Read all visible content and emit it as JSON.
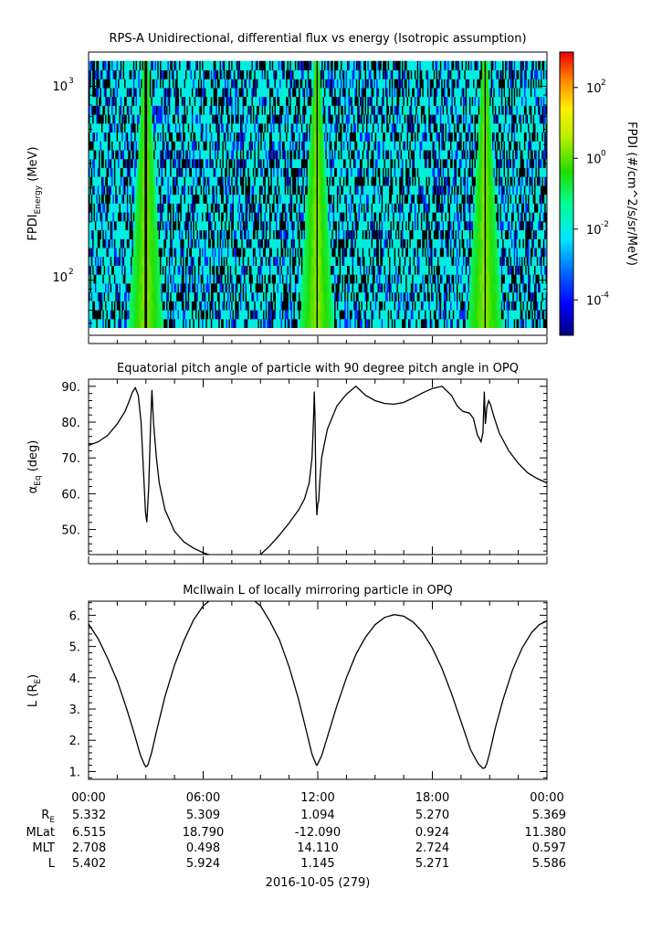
{
  "chart_data": [
    {
      "type": "heatmap",
      "title": "RPS-A Unidirectional, differential flux vs energy (Isotropic assumption)",
      "ylabel_main": "FPDI",
      "ylabel_sub": "Energy",
      "ylabel_unit": "(MeV)",
      "yscale": "log",
      "ylim": [
        52,
        1500
      ],
      "yticks": [
        {
          "value": 100,
          "base": "10",
          "exp": "2"
        },
        {
          "value": 1000,
          "base": "10",
          "exp": "3"
        }
      ],
      "colorbar": {
        "label": "FPDI (#/cm^2/s/sr/MeV)",
        "scale": "log",
        "range_exp": [
          -5,
          3
        ],
        "colormap": "rainbow",
        "ticks": [
          {
            "exp": -4,
            "base": "10",
            "exp_label": "-4"
          },
          {
            "exp": -2,
            "base": "10",
            "exp_label": "-2"
          },
          {
            "exp": 0,
            "base": "10",
            "exp_label": "0"
          },
          {
            "exp": 2,
            "base": "10",
            "exp_label": "2"
          }
        ]
      },
      "energy_bins": 30,
      "time_bins": 360,
      "enhancement_times_hours": [
        3.0,
        11.95,
        20.75
      ],
      "gap_times_hours": [
        3.0,
        11.95,
        20.75
      ]
    },
    {
      "type": "line",
      "title": "Equatorial pitch angle of particle with 90 degree pitch angle in OPQ",
      "ylabel": "α",
      "ylabel_sub": "Eq",
      "ylabel_unit": "(deg)",
      "ylim": [
        43,
        92
      ],
      "yticks": [
        "50.",
        "60.",
        "70.",
        "80.",
        "90."
      ],
      "x_hours": [
        0,
        0.5,
        1.0,
        1.5,
        1.9,
        2.1,
        2.3,
        2.45,
        2.6,
        2.75,
        2.88,
        2.98,
        3.05,
        3.15,
        3.25,
        3.32,
        3.4,
        3.55,
        3.7,
        4.0,
        4.5,
        5.0,
        5.5,
        6.0,
        6.3,
        null,
        9.0,
        9.5,
        10.0,
        10.5,
        11.0,
        11.3,
        11.55,
        11.7,
        11.78,
        11.82,
        11.86,
        11.9,
        11.95,
        12.0,
        12.05,
        12.1,
        12.2,
        12.5,
        13.0,
        13.5,
        14.0,
        14.5,
        15.0,
        15.5,
        16.0,
        16.5,
        17.0,
        17.5,
        18.0,
        18.5,
        19.0,
        19.3,
        19.6,
        19.95,
        20.15,
        20.35,
        20.55,
        20.65,
        20.72,
        20.78,
        20.85,
        20.95,
        21.05,
        21.2,
        21.5,
        22.0,
        22.5,
        23.0,
        23.5,
        24.0
      ],
      "y_deg": [
        73.5,
        74.5,
        76.3,
        79.5,
        82.9,
        85.5,
        88.4,
        89.6,
        87.5,
        80.0,
        66.0,
        55.0,
        52.0,
        62.0,
        80.0,
        89.0,
        80.0,
        70.0,
        63.0,
        55.5,
        49.5,
        46.5,
        44.8,
        43.5,
        43.0,
        null,
        43.0,
        45.5,
        48.5,
        51.8,
        55.5,
        58.5,
        63.0,
        70.0,
        81.0,
        88.5,
        80.0,
        62.0,
        54.0,
        57.0,
        58.0,
        63.0,
        70.0,
        78.0,
        84.5,
        87.8,
        90.0,
        87.5,
        86.0,
        85.2,
        85.0,
        85.5,
        86.8,
        88.2,
        89.4,
        90.0,
        87.5,
        84.5,
        83.0,
        82.5,
        81.0,
        76.5,
        74.5,
        77.0,
        88.5,
        79.5,
        84.0,
        86.0,
        84.8,
        82.0,
        77.0,
        72.0,
        68.5,
        65.8,
        64.2,
        63.0
      ]
    },
    {
      "type": "line",
      "title": "McIlwain L of locally mirroring particle in OPQ",
      "ylabel": "L (R",
      "ylabel_sub": "E",
      "ylabel_unit": ")",
      "ylim": [
        0.75,
        6.45
      ],
      "yticks": [
        "1.",
        "2.",
        "3.",
        "4.",
        "5.",
        "6."
      ],
      "x_hours": [
        0,
        0.5,
        1.0,
        1.5,
        2.0,
        2.4,
        2.7,
        2.9,
        3.0,
        3.1,
        3.3,
        3.6,
        4.0,
        4.5,
        5.0,
        5.5,
        6.0,
        6.3,
        null,
        8.7,
        9.0,
        9.5,
        10.0,
        10.5,
        11.0,
        11.4,
        11.7,
        11.9,
        11.95,
        12.0,
        12.2,
        12.5,
        13.0,
        13.5,
        14.0,
        14.5,
        15.0,
        15.5,
        16.0,
        16.5,
        17.0,
        17.5,
        18.0,
        18.5,
        19.0,
        19.5,
        20.0,
        20.4,
        20.65,
        20.75,
        20.85,
        21.0,
        21.3,
        21.7,
        22.2,
        22.7,
        23.2,
        23.6,
        24.0
      ],
      "y_L": [
        5.72,
        5.25,
        4.62,
        3.9,
        3.0,
        2.2,
        1.55,
        1.25,
        1.15,
        1.2,
        1.6,
        2.4,
        3.4,
        4.4,
        5.2,
        5.85,
        6.3,
        6.45,
        null,
        6.45,
        6.3,
        5.8,
        5.2,
        4.35,
        3.3,
        2.3,
        1.55,
        1.25,
        1.2,
        1.25,
        1.5,
        2.1,
        3.1,
        4.0,
        4.75,
        5.3,
        5.7,
        5.93,
        6.02,
        5.97,
        5.78,
        5.45,
        4.95,
        4.3,
        3.5,
        2.6,
        1.7,
        1.25,
        1.1,
        1.12,
        1.25,
        1.6,
        2.4,
        3.3,
        4.25,
        4.95,
        5.45,
        5.7,
        5.82
      ]
    }
  ],
  "x_axis": {
    "ticks": [
      "00:00",
      "06:00",
      "12:00",
      "18:00",
      "00:00"
    ],
    "tick_hours": [
      0,
      6,
      12,
      18,
      24
    ],
    "date_label": "2016-10-05 (279)"
  },
  "ephemeris": {
    "rows": [
      {
        "label": "R",
        "sub": "E",
        "values": [
          "5.332",
          "5.309",
          "1.094",
          "5.270",
          "5.369"
        ]
      },
      {
        "label": "MLat",
        "sub": "",
        "values": [
          "6.515",
          "18.790",
          "-12.090",
          "0.924",
          "11.380"
        ]
      },
      {
        "label": "MLT",
        "sub": "",
        "values": [
          "2.708",
          "0.498",
          "14.110",
          "2.724",
          "0.597"
        ]
      },
      {
        "label": "L",
        "sub": "",
        "values": [
          "5.402",
          "5.924",
          "1.145",
          "5.271",
          "5.586"
        ]
      }
    ]
  }
}
